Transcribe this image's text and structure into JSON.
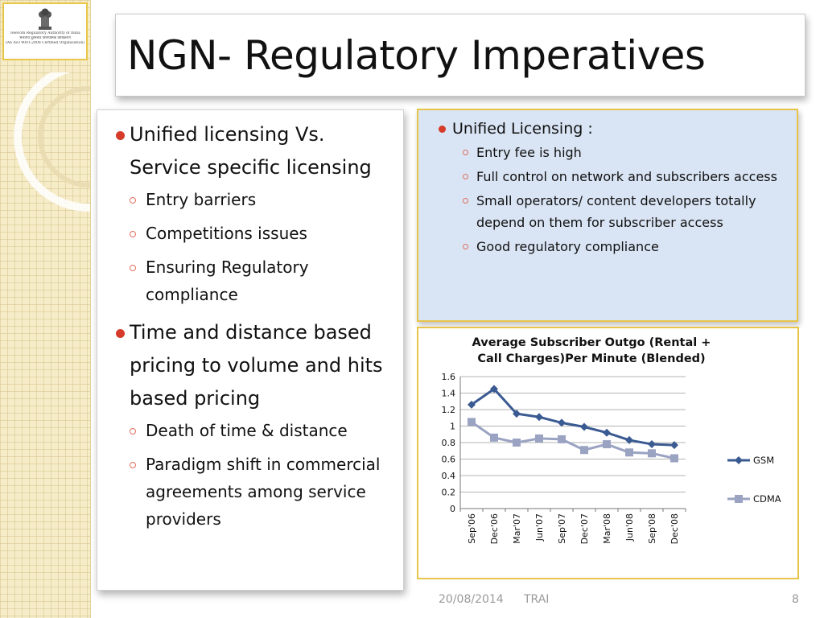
{
  "logo": {
    "line1": "Telecom Regulatory Authority of India",
    "line2": "भारतीय दूरसंचार विनियामक प्राधिकरण",
    "line3": "(An ISO 9001:2008 Certified Organisation)"
  },
  "slide": {
    "title": "NGN- Regulatory Imperatives"
  },
  "left_panel": {
    "bullets": [
      {
        "text": "Unified licensing Vs. Service specific licensing",
        "sub": [
          "Entry barriers",
          "Competitions issues",
          "Ensuring Regulatory compliance"
        ]
      },
      {
        "text": "Time and distance based pricing to volume and hits based pricing",
        "sub": [
          "Death of time & distance",
          "Paradigm shift in commercial agreements among service providers"
        ]
      }
    ]
  },
  "right_panel": {
    "heading": "Unified Licensing :",
    "items": [
      "Entry fee is high",
      "Full control on network and subscribers access",
      "Small operators/ content developers totally depend on them for subscriber access",
      "Good regulatory compliance"
    ]
  },
  "chart_data": {
    "type": "line",
    "title": "Average Subscriber Outgo (Rental + Call Charges)Per Minute (Blended)",
    "categories": [
      "Sep'06",
      "Dec'06",
      "Mar'07",
      "Jun'07",
      "Sep'07",
      "Dec'07",
      "Mar'08",
      "Jun'08",
      "Sep'08",
      "Dec'08"
    ],
    "series": [
      {
        "name": "GSM",
        "color": "#3a5a92",
        "marker": "diamond",
        "values": [
          1.26,
          1.45,
          1.15,
          1.11,
          1.04,
          0.99,
          0.92,
          0.83,
          0.78,
          0.77
        ]
      },
      {
        "name": "CDMA",
        "color": "#9aa3c2",
        "marker": "square",
        "values": [
          1.05,
          0.86,
          0.8,
          0.85,
          0.84,
          0.71,
          0.78,
          0.68,
          0.67,
          0.61
        ]
      }
    ],
    "ylim": [
      0,
      1.6
    ],
    "yticks": [
      "1.6",
      "1.4",
      "1.2",
      "1",
      "0.8",
      "0.6",
      "0.4",
      "0.2",
      "0"
    ],
    "legend_position": "right",
    "grid": true
  },
  "footer": {
    "date": "20/08/2014",
    "org": "TRAI",
    "page": "8"
  }
}
